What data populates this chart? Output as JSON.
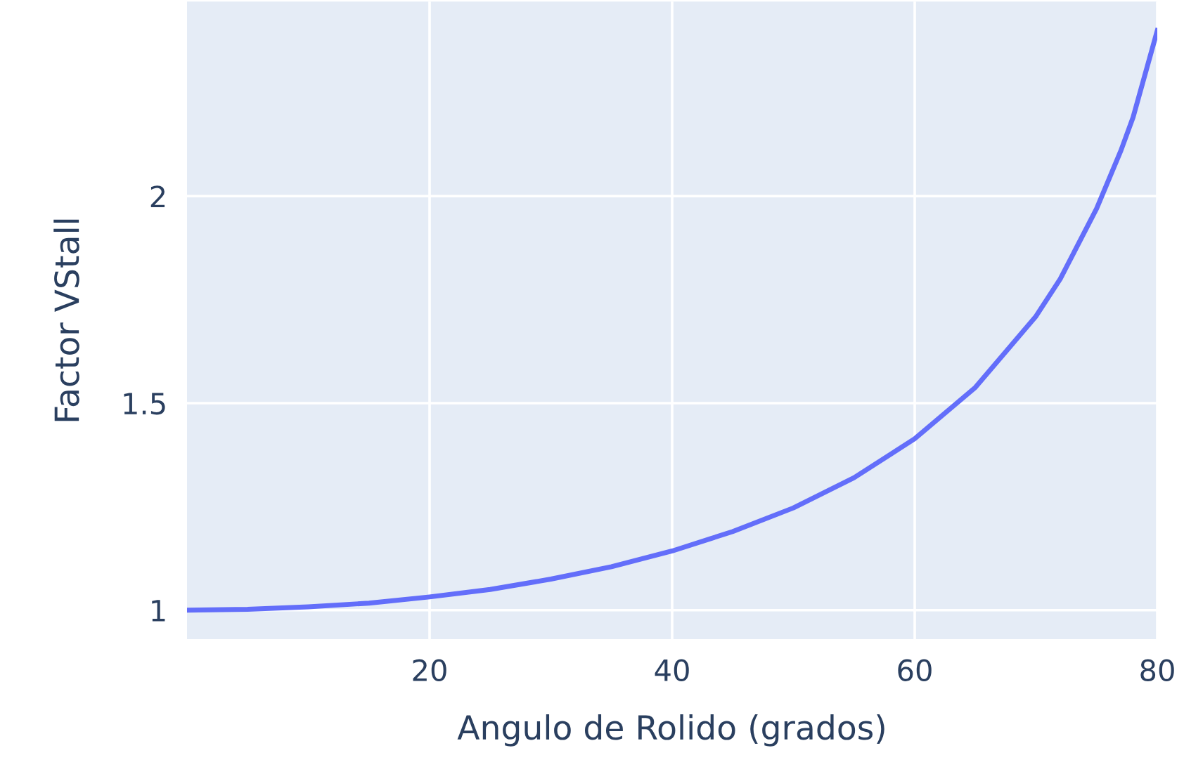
{
  "chart_data": {
    "type": "line",
    "xlabel": "Angulo de Rolido (grados)",
    "ylabel": "Factor VStall",
    "x": [
      0,
      5,
      10,
      15,
      20,
      25,
      30,
      35,
      40,
      45,
      50,
      55,
      60,
      65,
      70,
      72,
      75,
      77,
      78,
      80
    ],
    "series": [
      {
        "color": "#636efa",
        "values": [
          1.0,
          1.002,
          1.008,
          1.017,
          1.032,
          1.05,
          1.075,
          1.105,
          1.143,
          1.19,
          1.247,
          1.32,
          1.414,
          1.538,
          1.71,
          1.8,
          1.97,
          2.11,
          2.19,
          2.4
        ]
      }
    ],
    "xlim": [
      0,
      80
    ],
    "ylim": [
      0.93,
      2.47
    ],
    "xticks": [
      20,
      40,
      60,
      80
    ],
    "yticks": [
      1,
      1.5,
      2
    ],
    "grid": true,
    "legend": false
  }
}
